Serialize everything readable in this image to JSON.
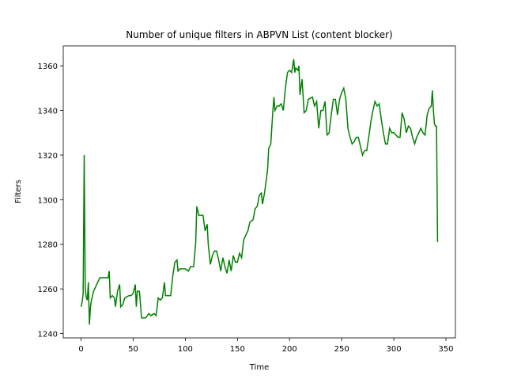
{
  "chart_data": {
    "type": "line",
    "title": "Number of unique filters in ABPVN List (content blocker)",
    "x_label": "Time",
    "y_label": "Filters",
    "x": [
      0,
      1,
      2,
      3,
      4,
      5,
      6,
      7,
      8,
      9,
      10,
      12,
      15,
      18,
      22,
      26,
      27,
      28,
      30,
      32,
      33,
      35,
      37,
      38,
      40,
      42,
      46,
      48,
      50,
      52,
      53,
      54,
      56,
      58,
      62,
      65,
      67,
      70,
      72,
      74,
      76,
      78,
      80,
      81,
      86,
      88,
      90,
      92,
      93,
      95,
      100,
      103,
      105,
      108,
      110,
      111,
      113,
      117,
      119,
      121,
      122,
      124,
      126,
      128,
      130,
      132,
      134,
      136,
      138,
      140,
      142,
      144,
      146,
      148,
      150,
      152,
      154,
      156,
      158,
      160,
      162,
      165,
      167,
      169,
      171,
      173,
      174,
      176,
      178,
      179,
      180,
      182,
      184,
      185,
      186,
      188,
      190,
      192,
      194,
      196,
      198,
      200,
      202,
      204,
      205,
      206,
      208,
      209,
      210,
      212,
      214,
      216,
      218,
      222,
      224,
      226,
      228,
      230,
      232,
      234,
      236,
      238,
      240,
      242,
      244,
      246,
      248,
      250,
      252,
      254,
      256,
      258,
      260,
      262,
      264,
      266,
      268,
      270,
      272,
      274,
      276,
      278,
      280,
      282,
      284,
      286,
      288,
      290,
      292,
      294,
      296,
      298,
      300,
      304,
      306,
      308,
      310,
      312,
      314,
      316,
      318,
      320,
      322,
      324,
      326,
      328,
      330,
      332,
      334,
      336,
      337,
      338,
      339,
      340,
      341,
      342
    ],
    "series": [
      {
        "name": "Filters",
        "color": "#008000",
        "values": [
          1252,
          1254,
          1258,
          1320,
          1260,
          1256,
          1255,
          1263,
          1244,
          1252,
          1255,
          1259,
          1262,
          1265,
          1265,
          1265,
          1268,
          1256,
          1257,
          1256,
          1252,
          1259,
          1262,
          1252,
          1253,
          1256,
          1257,
          1257,
          1258,
          1262,
          1252,
          1259,
          1259,
          1247,
          1247,
          1249,
          1248,
          1249,
          1248,
          1256,
          1255,
          1256,
          1263,
          1257,
          1257,
          1266,
          1272,
          1273,
          1268,
          1269,
          1269,
          1268,
          1270,
          1270,
          1281,
          1297,
          1293,
          1293,
          1286,
          1289,
          1280,
          1271,
          1275,
          1277,
          1277,
          1273,
          1268,
          1274,
          1270,
          1267,
          1273,
          1268,
          1275,
          1272,
          1272,
          1276,
          1274,
          1282,
          1284,
          1286,
          1290,
          1291,
          1296,
          1297,
          1302,
          1303,
          1298,
          1303,
          1310,
          1314,
          1323,
          1325,
          1340,
          1346,
          1340,
          1342,
          1342,
          1343,
          1340,
          1350,
          1357,
          1358,
          1357,
          1363,
          1357,
          1359,
          1358,
          1360,
          1347,
          1354,
          1339,
          1340,
          1345,
          1346,
          1342,
          1344,
          1332,
          1340,
          1340,
          1344,
          1329,
          1330,
          1338,
          1345,
          1345,
          1338,
          1345,
          1348,
          1350,
          1345,
          1332,
          1328,
          1325,
          1326,
          1328,
          1328,
          1324,
          1320,
          1322,
          1322,
          1328,
          1335,
          1340,
          1344,
          1342,
          1343,
          1336,
          1330,
          1325,
          1325,
          1332,
          1330,
          1330,
          1328,
          1328,
          1339,
          1336,
          1330,
          1333,
          1332,
          1328,
          1325,
          1328,
          1330,
          1332,
          1330,
          1329,
          1338,
          1341,
          1342,
          1349,
          1340,
          1334,
          1333,
          1333,
          1281
        ]
      }
    ],
    "xlim": [
      -17.1,
      359.1
    ],
    "ylim": [
      1238.05,
      1368.95
    ],
    "xticks": [
      0,
      50,
      100,
      150,
      200,
      250,
      300,
      350
    ],
    "yticks": [
      1240,
      1260,
      1280,
      1300,
      1320,
      1340,
      1360
    ],
    "grid": false
  }
}
